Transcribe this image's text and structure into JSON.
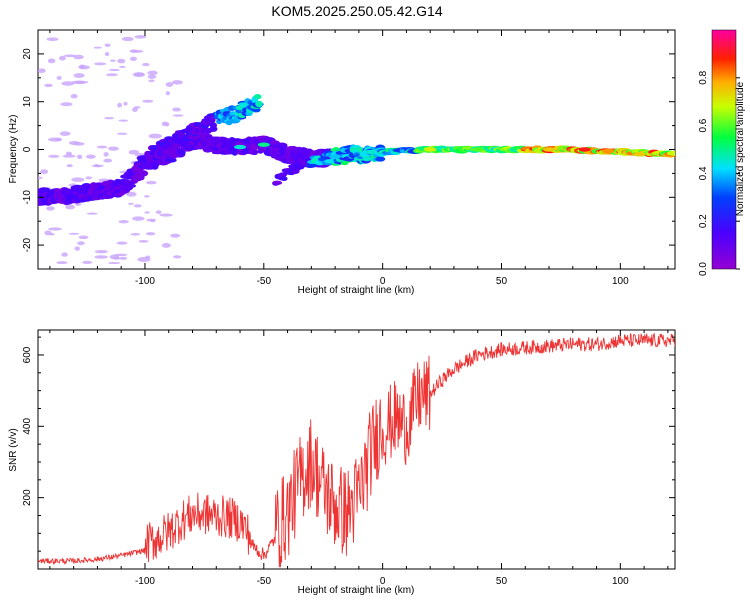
{
  "title": "KOM5.2025.250.05.42.G14",
  "chart_data": [
    {
      "type": "heatmap",
      "name": "spectrogram",
      "xlabel": "Height of straight line (km)",
      "ylabel": "Frequency (Hz)",
      "xlim": [
        -145,
        123
      ],
      "ylim": [
        -25,
        25
      ],
      "xticks": [
        -100,
        -50,
        0,
        50,
        100
      ],
      "yticks": [
        -20,
        -10,
        0,
        10,
        20
      ],
      "colorbar": {
        "label": "Normalized spectral amplitude",
        "range": [
          0,
          1
        ],
        "ticks": [
          0.0,
          0.2,
          0.4,
          0.6,
          0.8
        ],
        "colormap": "rainbow (purple-blue-cyan-green-yellow-red-magenta)"
      },
      "traces": [
        {
          "name": "main-trace",
          "points": [
            [
              -145,
              -10
            ],
            [
              -130,
              -9.5
            ],
            [
              -110,
              -8
            ],
            [
              -100,
              -3
            ],
            [
              -90,
              -1
            ],
            [
              -80,
              2
            ],
            [
              -70,
              1
            ],
            [
              -60,
              0.5
            ],
            [
              -50,
              1
            ],
            [
              -40,
              -1
            ],
            [
              -30,
              -2
            ],
            [
              -20,
              -1.5
            ],
            [
              -10,
              -1
            ],
            [
              0,
              -0.5
            ],
            [
              20,
              0
            ],
            [
              50,
              0
            ],
            [
              80,
              0
            ],
            [
              100,
              -0.5
            ],
            [
              123,
              -1
            ]
          ]
        },
        {
          "name": "upper-branch",
          "points": [
            [
              -100,
              -2
            ],
            [
              -90,
              1
            ],
            [
              -80,
              4
            ],
            [
              -70,
              6
            ],
            [
              -60,
              8
            ],
            [
              -52,
              10
            ]
          ]
        },
        {
          "name": "lower-branch",
          "points": [
            [
              -45,
              -7
            ],
            [
              -40,
              -5
            ],
            [
              -35,
              -3
            ],
            [
              -25,
              -2
            ],
            [
              -15,
              -1
            ],
            [
              -5,
              -1
            ]
          ]
        }
      ]
    },
    {
      "type": "line",
      "name": "snr",
      "xlabel": "Height of straight line (km)",
      "ylabel": "SNR (v/v)",
      "xlim": [
        -145,
        123
      ],
      "ylim": [
        0,
        670
      ],
      "xticks": [
        -100,
        -50,
        0,
        50,
        100
      ],
      "yticks": [
        200,
        400,
        600
      ],
      "color": "#ee3333",
      "series": [
        {
          "name": "SNR",
          "x": [
            -145,
            -130,
            -120,
            -110,
            -100,
            -95,
            -90,
            -85,
            -80,
            -75,
            -70,
            -65,
            -60,
            -55,
            -50,
            -45,
            -40,
            -35,
            -30,
            -25,
            -20,
            -15,
            -10,
            -5,
            0,
            5,
            10,
            15,
            20,
            25,
            30,
            40,
            50,
            60,
            70,
            80,
            90,
            100,
            110,
            123
          ],
          "y": [
            15,
            15,
            20,
            30,
            45,
            60,
            80,
            110,
            130,
            130,
            125,
            120,
            110,
            60,
            30,
            80,
            130,
            220,
            280,
            200,
            150,
            130,
            180,
            300,
            390,
            420,
            400,
            480,
            490,
            530,
            560,
            600,
            615,
            620,
            625,
            630,
            630,
            640,
            640,
            640
          ]
        }
      ]
    }
  ]
}
